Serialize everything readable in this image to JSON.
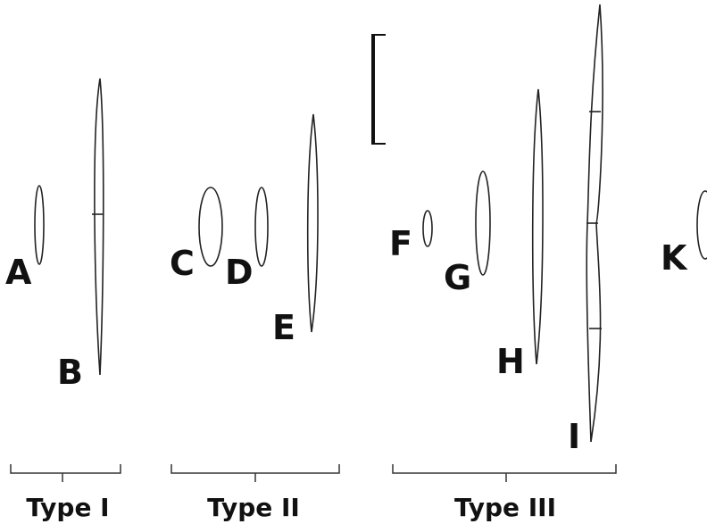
{
  "labels": [
    "A",
    "B",
    "C",
    "D",
    "E",
    "F",
    "G",
    "H",
    "I",
    "K"
  ],
  "groups": [
    "Type I",
    "Type II",
    "Type III"
  ]
}
